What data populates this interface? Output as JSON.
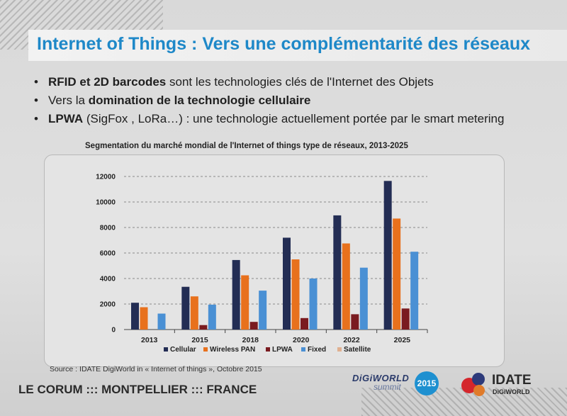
{
  "slide": {
    "title": "Internet of Things : Vers une complémentarité des réseaux",
    "bullets": [
      {
        "bold_lead": "RFID et 2D barcodes",
        "text": " sont les technologies clés de l'Internet des Objets"
      },
      {
        "lead": "Vers la ",
        "bold": "domination de la technologie cellulaire"
      },
      {
        "bold_lead": "LPWA",
        "text": " (SigFox , LoRa…) : une technologie actuellement portée par le smart metering"
      }
    ],
    "source": "Source : IDATE DigiWorld in « Internet of things », Octobre 2015",
    "footer_location": "LE CORUM ::: MONTPELLIER ::: FRANCE",
    "digiworld": {
      "name": "DiGiWORLD",
      "summit": "summit",
      "year": "2015"
    },
    "idate": {
      "name": "IDATE",
      "sub": "DiGiWORLD"
    }
  },
  "colors": {
    "title": "#1e88c8",
    "cellular": "#232d54",
    "wireless_pan": "#e8711d",
    "lpwa": "#7a1b20",
    "fixed": "#4a90d4",
    "satellite": "#e0b090"
  },
  "chart_data": {
    "type": "bar",
    "title": "Segmentation du marché mondial de l'Internet of things type de réseaux, 2013-2025",
    "categories": [
      "2013",
      "2015",
      "2018",
      "2020",
      "2022",
      "2025"
    ],
    "ylim": [
      0,
      12000
    ],
    "yticks": [
      "0",
      "2000",
      "4000",
      "6000",
      "8000",
      "10000",
      "12000"
    ],
    "grid": true,
    "legend_position": "bottom",
    "series": [
      {
        "name": "Cellular",
        "values": [
          2100,
          3350,
          5450,
          7200,
          8950,
          11650
        ]
      },
      {
        "name": "Wireless PAN",
        "values": [
          1750,
          2600,
          4250,
          5500,
          6750,
          8700
        ]
      },
      {
        "name": "LPWA",
        "values": [
          0,
          350,
          600,
          900,
          1200,
          1650
        ]
      },
      {
        "name": "Fixed",
        "values": [
          1250,
          1950,
          3050,
          4000,
          4850,
          6100
        ]
      },
      {
        "name": "Satellite",
        "values": [
          0,
          0,
          0,
          0,
          0,
          0
        ]
      }
    ]
  }
}
